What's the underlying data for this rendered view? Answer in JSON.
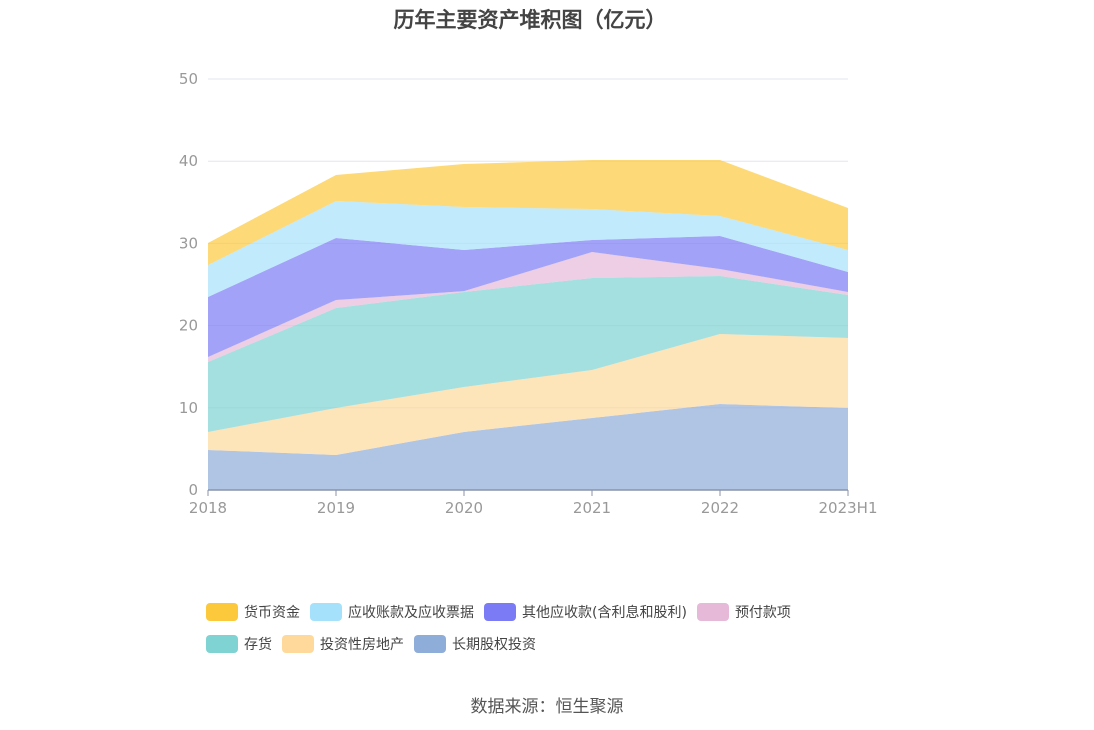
{
  "chart_data": {
    "type": "area",
    "stacked": true,
    "title": "历年主要资产堆积图（亿元）",
    "x": [
      "2018",
      "2019",
      "2020",
      "2021",
      "2022",
      "2023H1"
    ],
    "ylim": [
      0,
      50
    ],
    "yticks": [
      0,
      10,
      20,
      30,
      40,
      50
    ],
    "grid": true,
    "legend_position": "bottom",
    "series": [
      {
        "name": "长期股权投资",
        "color": "#8fadd9",
        "values": [
          4.87,
          4.26,
          7.06,
          8.76,
          10.46,
          9.98
        ]
      },
      {
        "name": "投资性房地产",
        "color": "#fed99b",
        "values": [
          2.19,
          5.72,
          5.47,
          5.84,
          8.52,
          8.51
        ]
      },
      {
        "name": "存货",
        "color": "#7fd3d3",
        "values": [
          8.51,
          12.16,
          11.56,
          11.19,
          7.05,
          5.23
        ]
      },
      {
        "name": "预付款项",
        "color": "#e6b9d9",
        "values": [
          0.61,
          0.97,
          0.11,
          3.16,
          0.86,
          0.37
        ]
      },
      {
        "name": "其他应收款(含利息和股利)",
        "color": "#7b7cf5",
        "values": [
          7.3,
          7.55,
          5.0,
          1.46,
          4.01,
          2.43
        ]
      },
      {
        "name": "应收账款及应收票据",
        "color": "#a6e1fb",
        "values": [
          3.89,
          4.5,
          5.23,
          3.77,
          2.43,
          2.68
        ]
      },
      {
        "name": "货币资金",
        "color": "#fcc93d",
        "values": [
          2.68,
          3.16,
          5.23,
          5.97,
          6.82,
          5.11
        ]
      }
    ],
    "legend_order": [
      "货币资金",
      "应收账款及应收票据",
      "其他应收款(含利息和股利)",
      "预付款项",
      "存货",
      "投资性房地产",
      "长期股权投资"
    ]
  },
  "source": "数据来源：恒生聚源"
}
